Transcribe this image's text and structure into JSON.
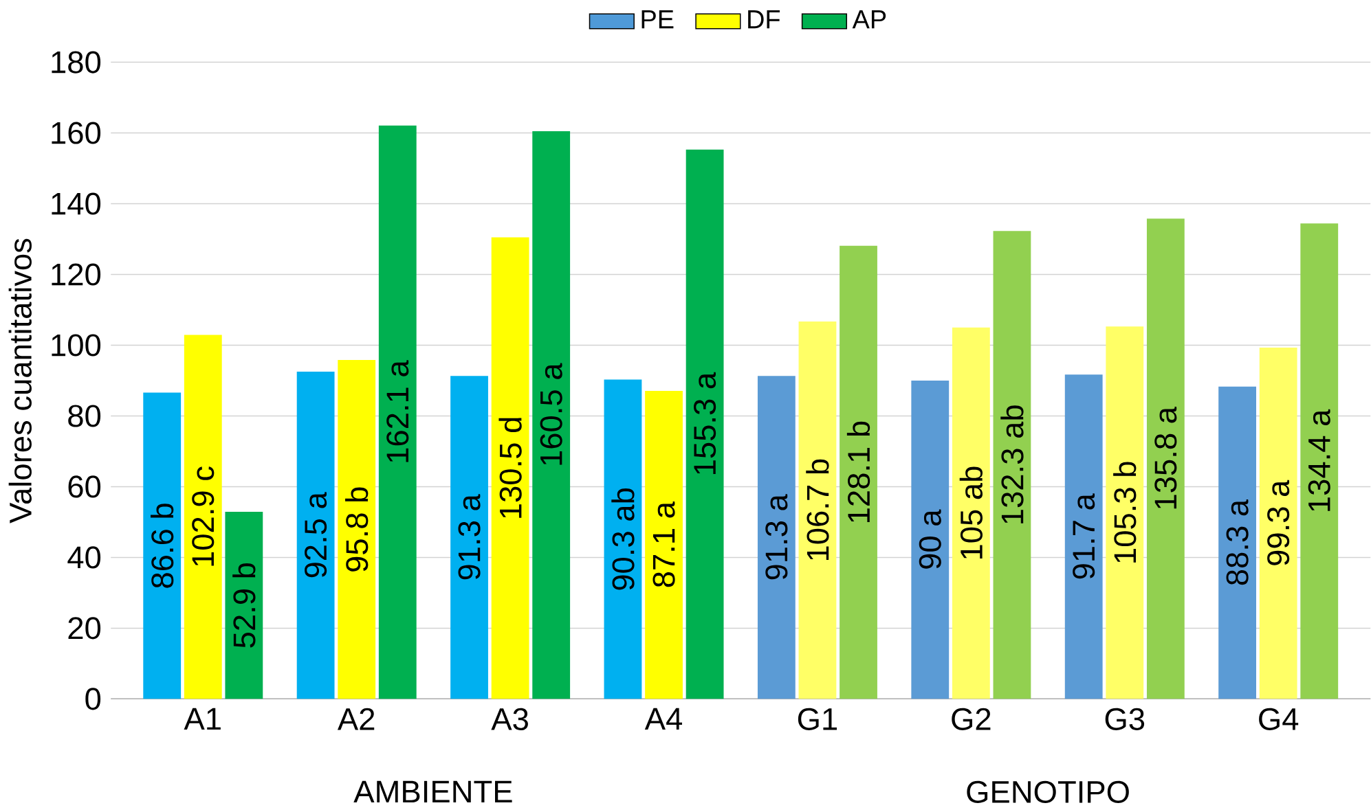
{
  "chart_data": {
    "type": "bar",
    "ylabel": "Valores cuantitativos",
    "categories": [
      "A1",
      "A2",
      "A3",
      "A4",
      "G1",
      "G2",
      "G3",
      "G4"
    ],
    "series": [
      {
        "name": "PE",
        "color": "#4f9ad8",
        "colors": [
          "#00b0f0",
          "#00b0f0",
          "#00b0f0",
          "#00b0f0",
          "#5b9bd5",
          "#5b9bd5",
          "#5b9bd5",
          "#5b9bd5"
        ],
        "values": [
          86.6,
          92.5,
          91.3,
          90.3,
          91.3,
          90,
          91.7,
          88.3
        ],
        "value_labels": [
          "86.6 b",
          "92.5 a",
          "91.3 a",
          "90.3 ab",
          "91.3 a",
          "90 a",
          "91.7 a",
          "88.3 a"
        ]
      },
      {
        "name": "DF",
        "color": "#ffff00",
        "colors": [
          "#ffff00",
          "#ffff00",
          "#ffff00",
          "#ffff00",
          "#ffff66",
          "#ffff66",
          "#ffff66",
          "#ffff66"
        ],
        "values": [
          102.9,
          95.8,
          130.5,
          87.1,
          106.7,
          105,
          105.3,
          99.3
        ],
        "value_labels": [
          "102.9 c",
          "95.8 b",
          "130.5 d",
          "87.1 a",
          "106.7 b",
          "105 ab",
          "105.3 b",
          "99.3 a"
        ]
      },
      {
        "name": "AP",
        "color": "#00b050",
        "colors": [
          "#00b050",
          "#00b050",
          "#00b050",
          "#00b050",
          "#92d050",
          "#92d050",
          "#92d050",
          "#92d050"
        ],
        "values": [
          52.9,
          162.1,
          160.5,
          155.3,
          128.1,
          132.3,
          135.8,
          134.4
        ],
        "value_labels": [
          "52.9 b",
          "162.1 a",
          "160.5 a",
          "155.3 a",
          "128.1 b",
          "132.3 ab",
          "135.8 a",
          "134.4 a"
        ]
      }
    ],
    "ylim": [
      0,
      180
    ],
    "yticks": [
      0,
      20,
      40,
      60,
      80,
      100,
      120,
      140,
      160,
      180
    ],
    "grid": "y",
    "legend": "top",
    "annotations": [
      "AMBIENTE",
      "GENOTIPO"
    ]
  }
}
